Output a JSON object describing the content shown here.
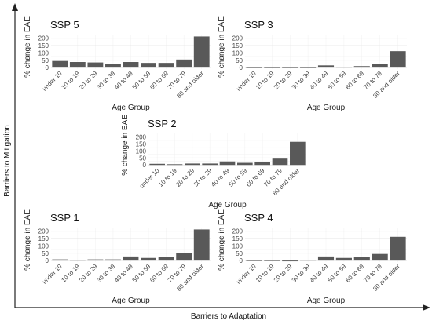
{
  "figure": {
    "y_axis_label": "Barriers to Mitigation",
    "x_axis_label": "Barriers to Adaptation"
  },
  "chart_data": [
    {
      "id": "ssp5",
      "type": "bar",
      "title": "SSP 5",
      "xlabel": "Age Group",
      "ylabel": "% change in EAE",
      "yticks": [
        0,
        50,
        100,
        150,
        200
      ],
      "ylim": [
        -10,
        225
      ],
      "categories": [
        "under 10",
        "10 to 19",
        "20 to 29",
        "30 to 39",
        "40 to 49",
        "50 to 59",
        "60 to 69",
        "70 to 79",
        "80 and older"
      ],
      "values": [
        45,
        38,
        35,
        25,
        38,
        32,
        32,
        55,
        212
      ]
    },
    {
      "id": "ssp3",
      "type": "bar",
      "title": "SSP 3",
      "xlabel": "Age Group",
      "ylabel": "% change in EAE",
      "yticks": [
        0,
        50,
        100,
        150,
        200
      ],
      "ylim": [
        -10,
        225
      ],
      "categories": [
        "under 10",
        "10 to 19",
        "20 to 29",
        "30 to 39",
        "40 to 49",
        "50 to 59",
        "60 to 69",
        "70 to 79",
        "80 and older"
      ],
      "values": [
        0,
        0,
        0,
        0,
        15,
        5,
        10,
        27,
        112
      ]
    },
    {
      "id": "ssp2",
      "type": "bar",
      "title": "SSP 2",
      "xlabel": "Age Group",
      "ylabel": "% change in EAE",
      "yticks": [
        0,
        50,
        100,
        150,
        200
      ],
      "ylim": [
        -10,
        225
      ],
      "categories": [
        "under 10",
        "10 to 19",
        "20 to 29",
        "30 to 39",
        "40 to 49",
        "50 to 59",
        "60 to 69",
        "70 to 79",
        "80 and older"
      ],
      "values": [
        8,
        5,
        10,
        10,
        25,
        15,
        20,
        45,
        165
      ]
    },
    {
      "id": "ssp1",
      "type": "bar",
      "title": "SSP 1",
      "xlabel": "Age Group",
      "ylabel": "% change in EAE",
      "yticks": [
        0,
        50,
        100,
        150,
        200
      ],
      "ylim": [
        -10,
        225
      ],
      "categories": [
        "under 10",
        "10 to 19",
        "20 to 29",
        "30 to 39",
        "40 to 49",
        "50 to 59",
        "60 to 69",
        "70 to 79",
        "80 and older"
      ],
      "values": [
        8,
        3,
        8,
        8,
        28,
        18,
        25,
        52,
        212
      ]
    },
    {
      "id": "ssp4",
      "type": "bar",
      "title": "SSP 4",
      "xlabel": "Age Group",
      "ylabel": "% change in EAE",
      "yticks": [
        0,
        50,
        100,
        150,
        200
      ],
      "ylim": [
        -10,
        225
      ],
      "categories": [
        "under 10",
        "10 to 19",
        "20 to 29",
        "30 to 39",
        "40 to 49",
        "50 to 59",
        "60 to 69",
        "70 to 79",
        "80 and older"
      ],
      "values": [
        -2,
        -2,
        -5,
        3,
        28,
        18,
        22,
        45,
        162
      ]
    }
  ]
}
